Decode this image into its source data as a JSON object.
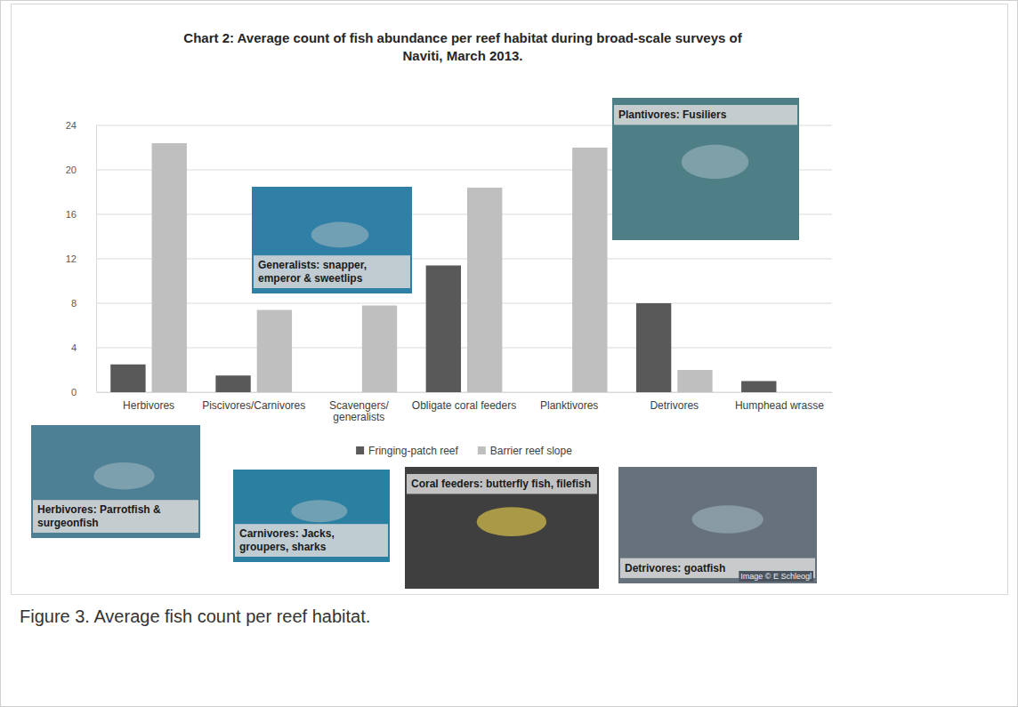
{
  "chart_data": {
    "type": "bar",
    "title": "Chart 2: Average count of fish abundance per reef habitat during broad-scale surveys of Naviti, March 2013.",
    "caption": "Figure 3. Average fish count per reef habitat.",
    "categories": [
      "Herbivores",
      "Piscivores/Carnivores",
      "Scavengers/ generalists",
      "Obligate coral feeders",
      "Planktivores",
      "Detrivores",
      "Humphead wrasse"
    ],
    "series": [
      {
        "name": "Fringing-patch reef",
        "color": "#595959",
        "values": [
          2.5,
          1.5,
          0,
          11.4,
          0,
          8,
          1
        ]
      },
      {
        "name": "Barrier reef slope",
        "color": "#bfbfbf",
        "values": [
          22.4,
          7.4,
          7.8,
          18.4,
          22,
          2,
          0
        ]
      }
    ],
    "ylim": [
      0,
      24
    ],
    "yticks": [
      0,
      4,
      8,
      12,
      16,
      20,
      24
    ],
    "grid": true,
    "legend": "bottom",
    "annotations": [
      "Generalists: snapper, emperor & sweetlips",
      "Plantivores: Fusiliers",
      "Herbivores: Parrotfish & surgeonfish",
      "Carnivores: Jacks, groupers, sharks",
      "Coral feeders: butterfly fish, filefish",
      "Detrivores: goatfish",
      "Image © E Schleogl"
    ]
  }
}
